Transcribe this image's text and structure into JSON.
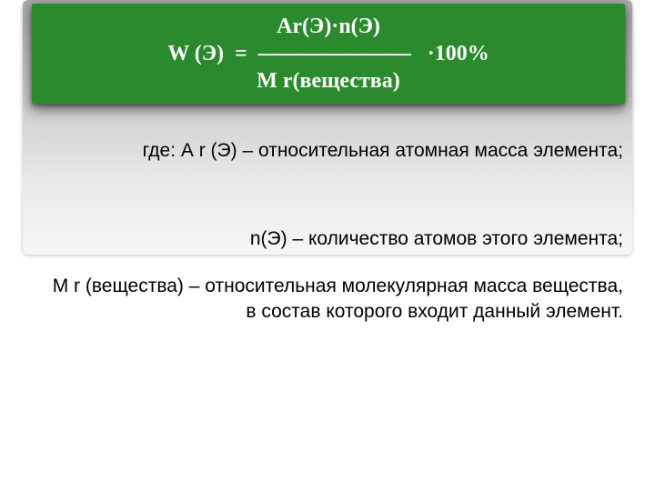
{
  "formula": {
    "background_color": "#2b8a2d",
    "text_color": "#ffffff",
    "font_size_pt": 24,
    "line1": "Ar(Э)·n(Э)",
    "line2": "W (Э)  =  ———————   ·100%",
    "line3": "M r(вещества)"
  },
  "definitions": {
    "font_size_pt": 21,
    "text_color": "#000000",
    "d1": "где: А r (Э) – относительная атомная масса элемента;",
    "d2": "n(Э) – количество атомов этого элемента;",
    "d3": "М r (вещества) – относительная молекулярная масса вещества, в состав которого входит данный элемент."
  },
  "layout": {
    "slide_width": 720,
    "slide_height": 540,
    "slide_bg": "#ffffff",
    "gradient_box": {
      "from": "#a6a6a6",
      "mid1": "#c4c4c4",
      "mid2": "#e8e8e8",
      "to": "#f7f7f7"
    }
  }
}
